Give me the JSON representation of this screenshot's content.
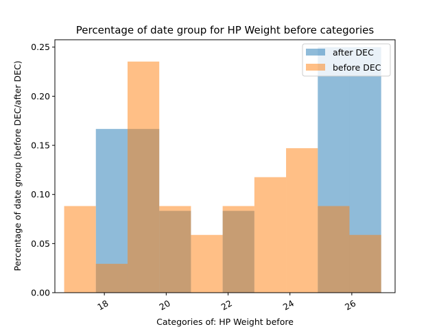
{
  "chart_data": {
    "type": "bar",
    "title": "Percentage of date group for HP Weight before categories",
    "xlabel": "Categories of: HP Weight before",
    "ylabel": "Percentage of date group (before DEC/after DEC)",
    "xlim": [
      16.4,
      27.4
    ],
    "ylim": [
      0,
      0.2575
    ],
    "xticks": [
      18,
      20,
      22,
      24,
      26
    ],
    "yticks": [
      0.0,
      0.05,
      0.1,
      0.15,
      0.2,
      0.25
    ],
    "ytick_labels": [
      "0.00",
      "0.05",
      "0.10",
      "0.15",
      "0.20",
      "0.25"
    ],
    "xtick_labels": [
      "18",
      "20",
      "22",
      "24",
      "26"
    ],
    "bin_edges": [
      16.7,
      17.725,
      18.75,
      19.775,
      20.8,
      21.825,
      22.85,
      23.875,
      24.9,
      25.925,
      26.95
    ],
    "legend_position": "top-right",
    "series": [
      {
        "name": "after DEC",
        "color": "#1f77b4",
        "alpha": 0.5,
        "values": [
          0.0,
          0.1667,
          0.1667,
          0.0833,
          0.0,
          0.0833,
          0.0,
          0.0,
          0.25,
          0.25
        ]
      },
      {
        "name": "before DEC",
        "color": "#ff7f0e",
        "alpha": 0.5,
        "values": [
          0.0882,
          0.0294,
          0.2353,
          0.0882,
          0.0588,
          0.0882,
          0.1176,
          0.1471,
          0.0882,
          0.0588
        ]
      }
    ]
  }
}
